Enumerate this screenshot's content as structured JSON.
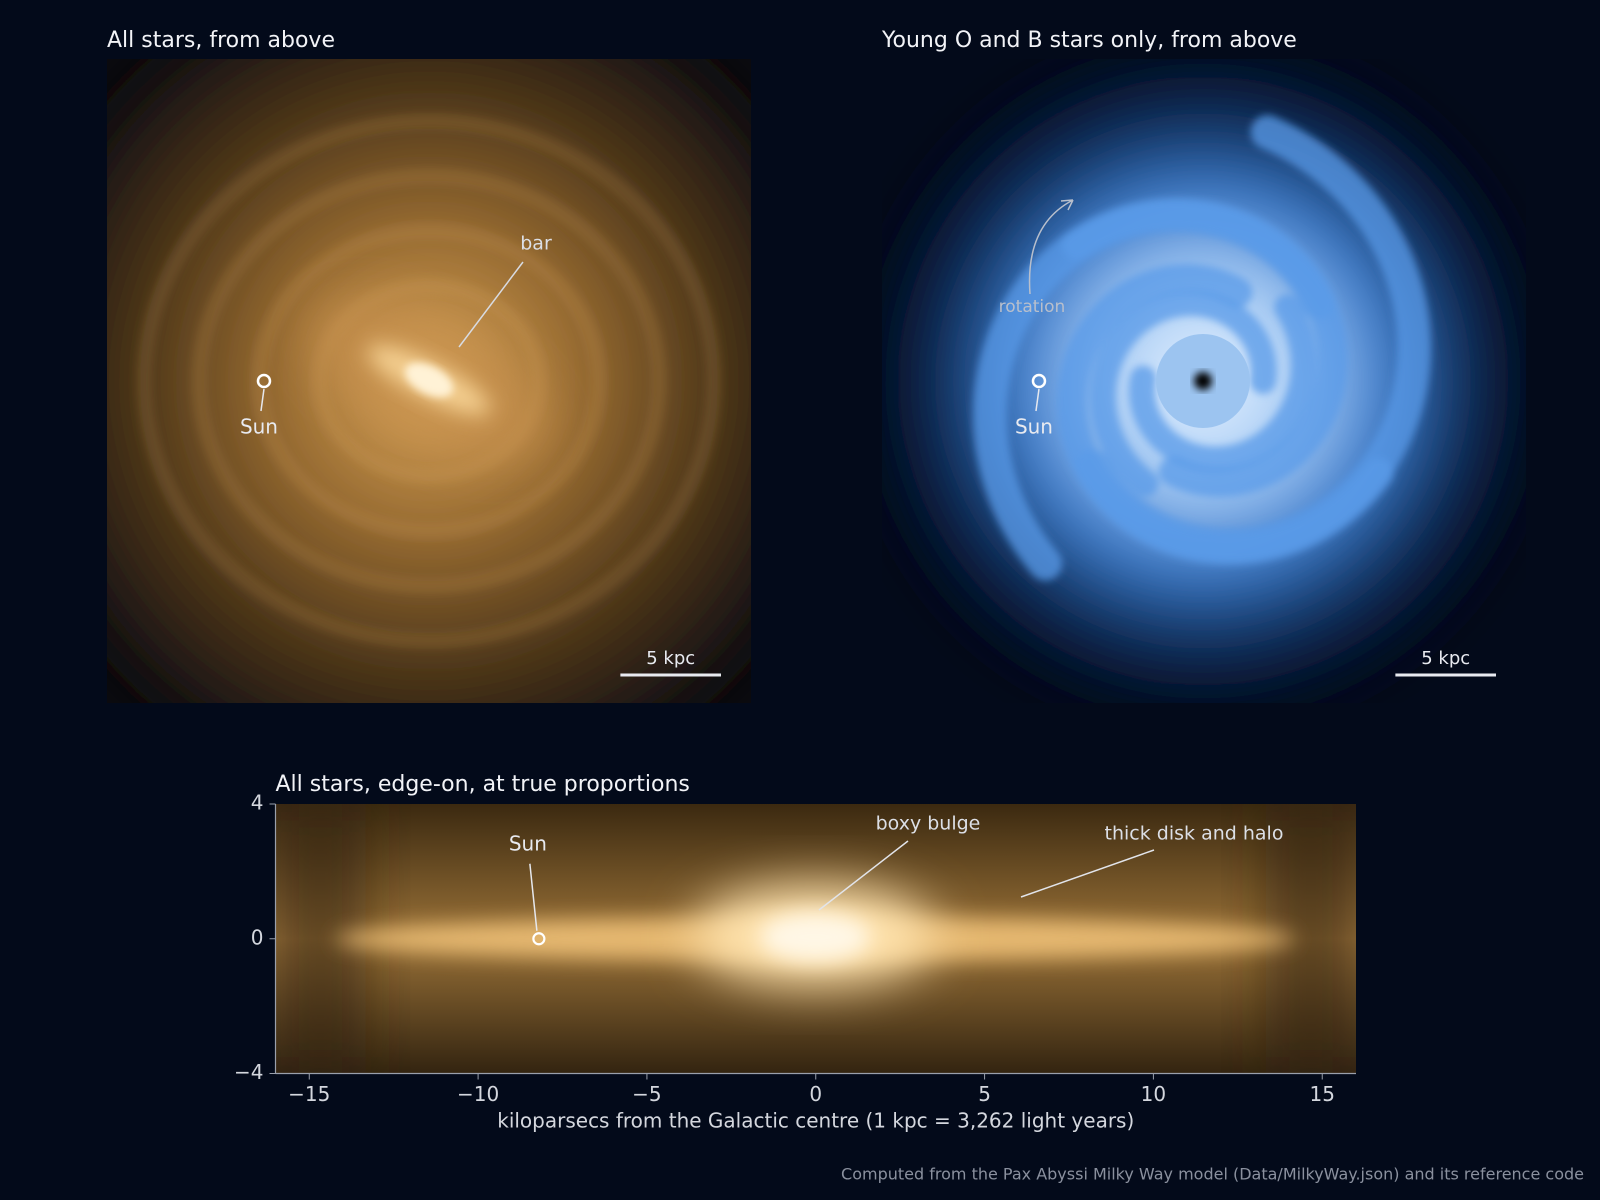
{
  "chart_data": [
    {
      "type": "image",
      "title": "All stars, from above",
      "palette": "amber",
      "xlim": [
        -16,
        16
      ],
      "ylim": [
        -16,
        16
      ],
      "sun": [
        -8.2,
        0
      ],
      "sun_label": "Sun",
      "annotations": [
        "bar"
      ],
      "scale_bar": {
        "length": 5,
        "label": "5 kpc"
      }
    },
    {
      "type": "image",
      "title": "Young O and B stars only, from above",
      "palette": "blue",
      "xlim": [
        -16,
        16
      ],
      "ylim": [
        -16,
        16
      ],
      "sun": [
        -8.2,
        0
      ],
      "sun_label": "Sun",
      "annotations": [
        "rotation"
      ],
      "scale_bar": {
        "length": 5,
        "label": "5 kpc"
      }
    },
    {
      "type": "edge_on",
      "title": "All stars, edge-on, at true proportions",
      "xlim": [
        -16,
        16
      ],
      "ylim": [
        -4,
        4
      ],
      "xticks": [
        {
          "value": -15,
          "label": "−15"
        },
        {
          "value": -10,
          "label": "−10"
        },
        {
          "value": -5,
          "label": "−5"
        },
        0,
        5,
        10,
        15
      ],
      "yticks": [
        {
          "value": -4,
          "label": "−4"
        },
        0,
        4
      ],
      "xlabel": "kiloparsecs from the Galactic centre (1 kpc = 3,262 light years)",
      "sun": [
        -8.2,
        0
      ],
      "sun_label": "Sun",
      "annotations": [
        "boxy bulge",
        "thick disk and halo"
      ]
    }
  ],
  "footer": "Computed from the Pax Abyssi Milky Way model (Data/MilkyWay.json) and its reference code"
}
